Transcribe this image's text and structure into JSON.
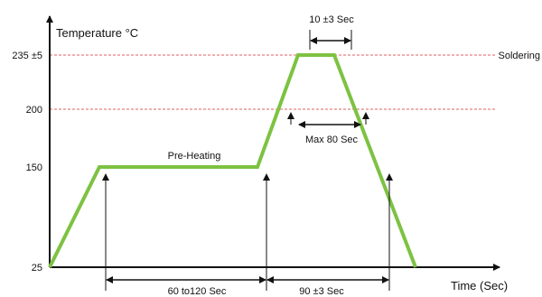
{
  "chart_data": {
    "type": "line",
    "title": "",
    "ylabel": "Temperature °C",
    "xlabel": "Time (Sec)",
    "y_ticks": [
      {
        "value": 25,
        "label": "25"
      },
      {
        "value": 150,
        "label": "150"
      },
      {
        "value": 200,
        "label": "200"
      },
      {
        "value": 235,
        "label": "235 ±5"
      }
    ],
    "ylim": [
      25,
      248
    ],
    "series": [
      {
        "color": "#7dc242",
        "points": [
          {
            "x": 0,
            "y": 25
          },
          {
            "x": 55,
            "y": 150
          },
          {
            "x": 230,
            "y": 150
          },
          {
            "x": 275,
            "y": 235
          },
          {
            "x": 315,
            "y": 235
          },
          {
            "x": 405,
            "y": 25
          }
        ]
      }
    ],
    "reference_lines": [
      {
        "y": 235,
        "label": "Soldering",
        "color": "#e06060"
      },
      {
        "y": 200,
        "label": "",
        "color": "#e06060"
      }
    ],
    "annotations": {
      "preheat_label": "Pre-Heating",
      "preheat_duration": "60 to120 Sec",
      "peak_duration": "10 ±3 Sec",
      "above_200": "Max 80 Sec",
      "cooldown": "90 ±3 Sec"
    }
  }
}
